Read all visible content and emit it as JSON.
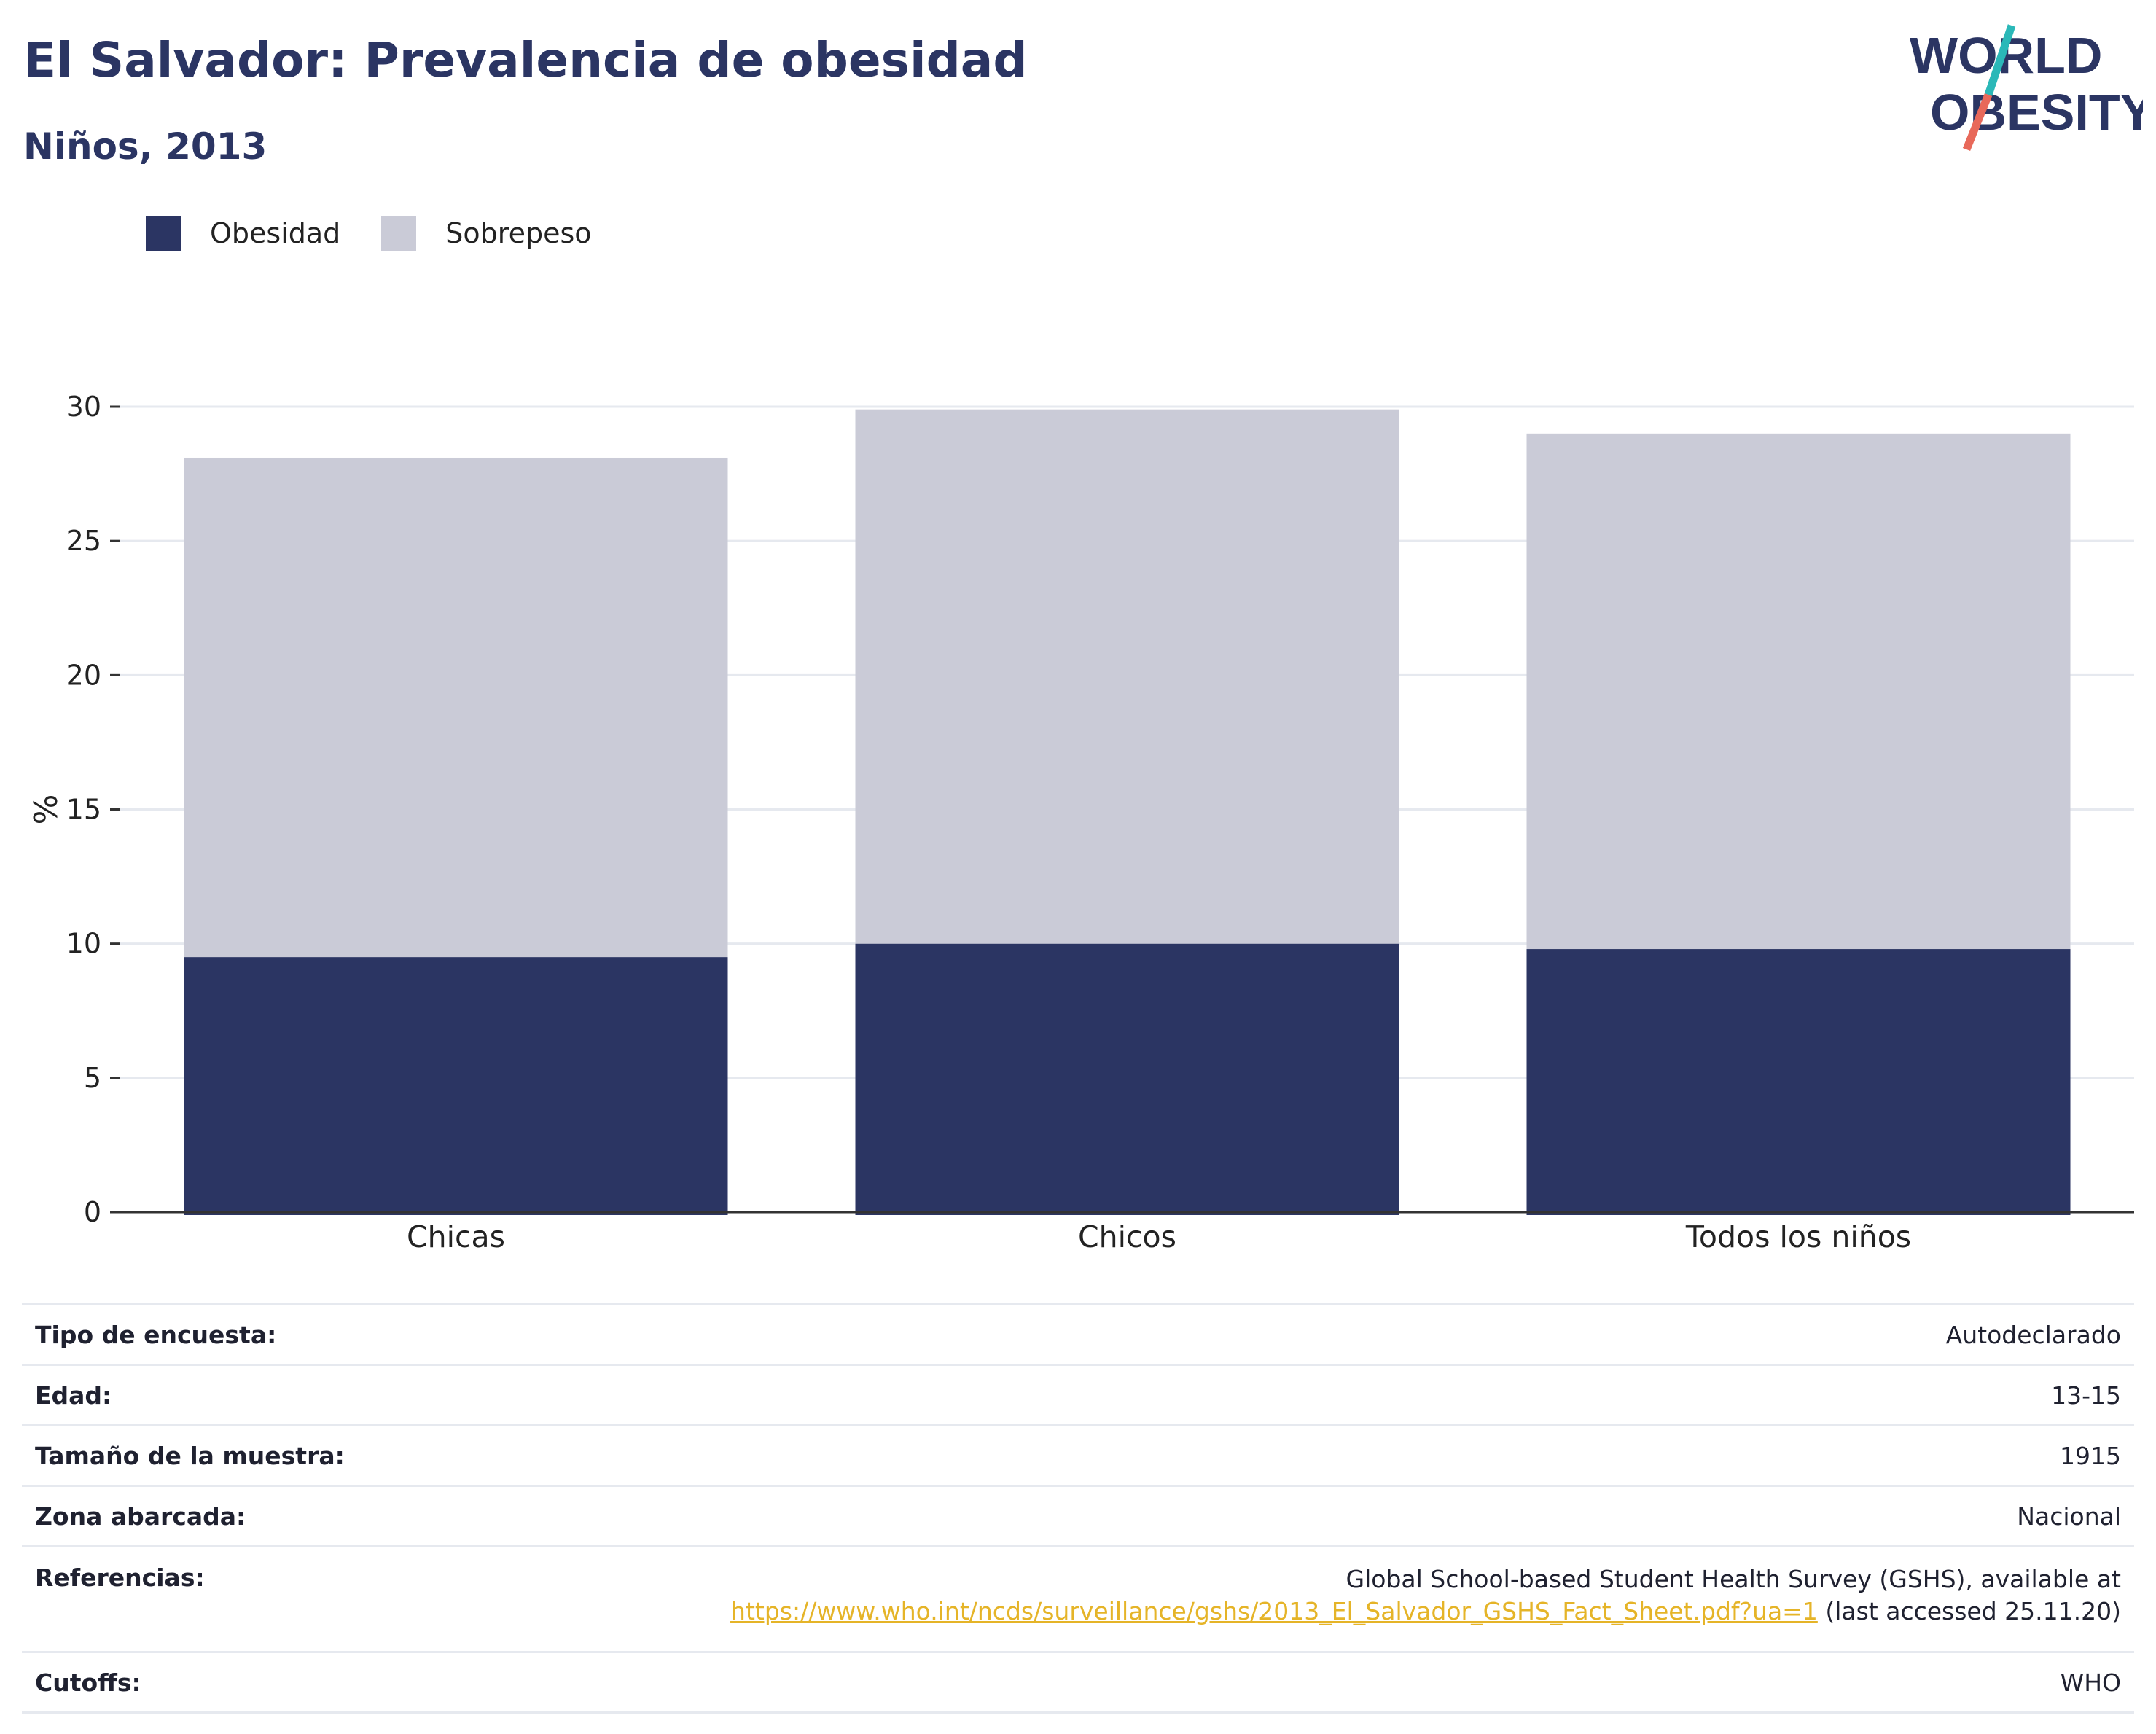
{
  "header": {
    "title": "El Salvador: Prevalencia de obesidad",
    "subtitle": "Niños, 2013"
  },
  "logo": {
    "line1": "WORLD",
    "line2": "OBESITY",
    "colors": {
      "text": "#2b3563",
      "slash_top": "#2bb8b8",
      "slash_bottom": "#e8695a"
    }
  },
  "colors": {
    "obesidad": "#2b3563",
    "sobrepeso": "#cacbd7",
    "grid": "#e6e9ef",
    "axis": "#333333"
  },
  "chart_data": {
    "type": "bar",
    "stacked": true,
    "categories": [
      "Chicas",
      "Chicos",
      "Todos los niños"
    ],
    "series": [
      {
        "name": "Obesidad",
        "values": [
          9.5,
          10.0,
          9.8
        ]
      },
      {
        "name": "Sobrepeso",
        "values": [
          18.6,
          19.9,
          19.2
        ]
      }
    ],
    "ylabel": "%",
    "ylim": [
      0,
      30
    ],
    "yticks": [
      0,
      5,
      10,
      15,
      20,
      25,
      30
    ],
    "grid": true,
    "legend_position": "top-left"
  },
  "table": {
    "rows": [
      {
        "label": "Tipo de encuesta:",
        "value": "Autodeclarado"
      },
      {
        "label": "Edad:",
        "value": "13-15"
      },
      {
        "label": "Tamaño de la muestra:",
        "value": "1915"
      },
      {
        "label": "Zona abarcada:",
        "value": "Nacional"
      }
    ],
    "references": {
      "label": "Referencias:",
      "text_line1": "Global School-based Student Health Survey (GSHS), available at",
      "link": "https://www.who.int/ncds/surveillance/gshs/2013_El_Salvador_GSHS_Fact_Sheet.pdf?ua=1",
      "suffix": " (last accessed 25.11.20)"
    },
    "cutoffs": {
      "label": "Cutoffs:",
      "value": "WHO"
    }
  }
}
